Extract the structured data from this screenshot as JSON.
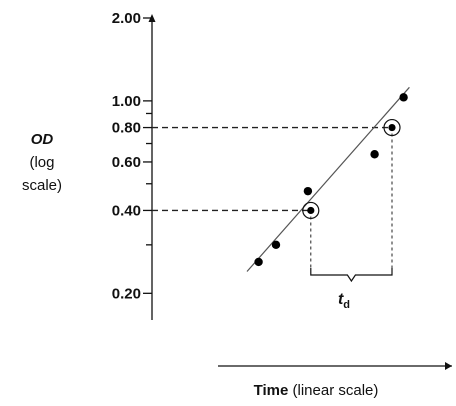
{
  "chart_data": {
    "type": "scatter",
    "title": "",
    "y_axis": {
      "scale": "log",
      "label": "OD",
      "label_note_line1": "(log",
      "label_note_line2": "scale)",
      "ylim": [
        0.16,
        2.0
      ],
      "tick_labels": [
        "2.00",
        "1.00",
        "0.80",
        "0.60",
        "0.40",
        "0.20"
      ],
      "major_ticks": [
        2.0,
        1.0,
        0.8,
        0.6,
        0.4,
        0.2
      ],
      "minor_ticks": [
        0.9,
        0.7,
        0.5,
        0.3
      ]
    },
    "x_axis": {
      "scale": "linear",
      "label_bold": "Time",
      "label_rest": " (linear scale)",
      "xlim": [
        0,
        10
      ]
    },
    "points": [
      {
        "x": 3.4,
        "y": 0.26
      },
      {
        "x": 4.0,
        "y": 0.3
      },
      {
        "x": 5.1,
        "y": 0.47
      },
      {
        "x": 7.4,
        "y": 0.64
      },
      {
        "x": 8.4,
        "y": 1.03
      }
    ],
    "fit_line": {
      "x_start": 3.0,
      "y_start": 0.24,
      "x_end": 8.6,
      "y_end": 1.12
    },
    "highlighted_points": [
      {
        "x": 5.2,
        "y": 0.4
      },
      {
        "x": 8.0,
        "y": 0.8
      }
    ],
    "doubling_time": {
      "label": "t",
      "subscript": "d",
      "x_start": 5.2,
      "x_end": 8.0,
      "y_from": 0.4,
      "y_to": 0.8
    },
    "grid": false,
    "legend": "none"
  },
  "colors": {
    "axis": "#111111",
    "points": "#000000",
    "fit_line": "#555555",
    "dashed": "#222222"
  }
}
